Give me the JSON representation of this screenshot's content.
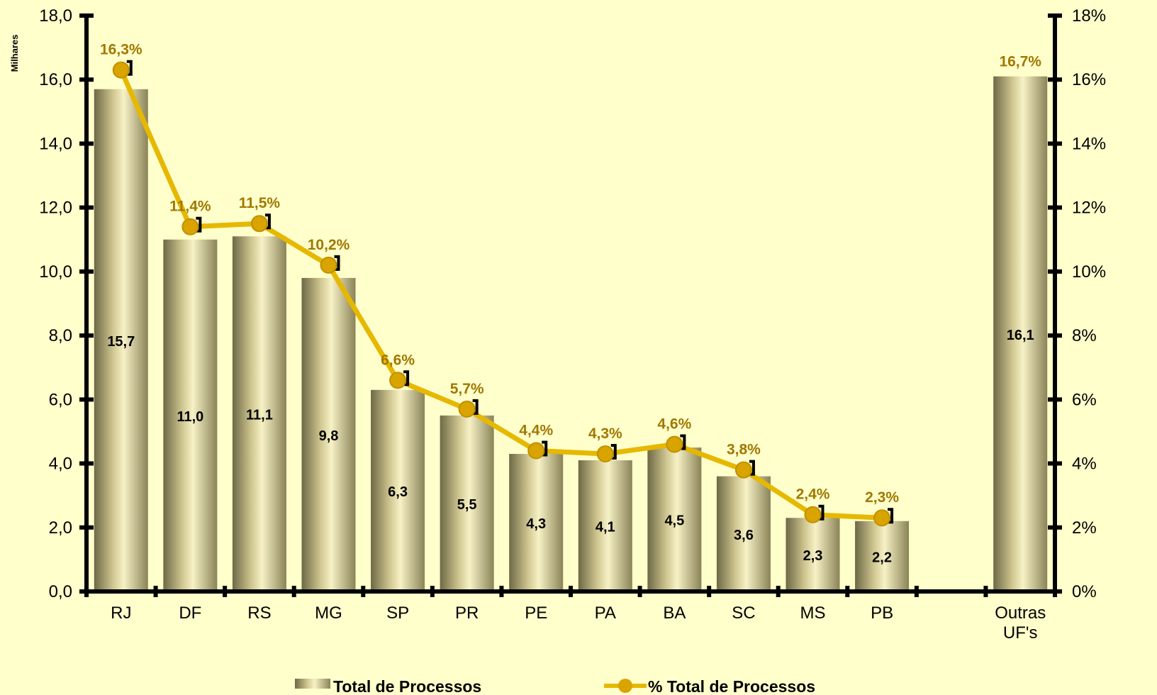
{
  "chart_data": {
    "type": "bar",
    "ylabel": "Milhares",
    "ylim": [
      0,
      18
    ],
    "y2lim": [
      0,
      18
    ],
    "y_ticks": [
      "0,0",
      "2,0",
      "4,0",
      "6,0",
      "8,0",
      "10,0",
      "12,0",
      "14,0",
      "16,0",
      "18,0"
    ],
    "y2_ticks": [
      "0%",
      "2%",
      "4%",
      "6%",
      "8%",
      "10%",
      "12%",
      "14%",
      "16%",
      "18%"
    ],
    "categories": [
      "RJ",
      "DF",
      "RS",
      "MG",
      "SP",
      "PR",
      "PE",
      "PA",
      "BA",
      "SC",
      "MS",
      "PB",
      "",
      "Outras UF's"
    ],
    "series": [
      {
        "name": "Total de Processos",
        "kind": "bar",
        "values": [
          15.7,
          11.0,
          11.1,
          9.8,
          6.3,
          5.5,
          4.3,
          4.1,
          4.5,
          3.6,
          2.3,
          2.2,
          null,
          16.1
        ],
        "labels": [
          "15,7",
          "11,0",
          "11,1",
          "9,8",
          "6,3",
          "5,5",
          "4,3",
          "4,1",
          "4,5",
          "3,6",
          "2,3",
          "2,2",
          "",
          "16,1"
        ]
      },
      {
        "name": "% Total de Processos",
        "kind": "line",
        "values": [
          16.3,
          11.4,
          11.5,
          10.2,
          6.6,
          5.7,
          4.4,
          4.3,
          4.6,
          3.8,
          2.4,
          2.3,
          null,
          16.7
        ],
        "labels": [
          "16,3%",
          "11,4%",
          "11,5%",
          "10,2%",
          "6,6%",
          "5,7%",
          "4,4%",
          "4,3%",
          "4,6%",
          "3,8%",
          "2,4%",
          "2,3%",
          "",
          "16,7%"
        ]
      }
    ],
    "legend": "bottom",
    "grid": false
  },
  "colors": {
    "background": "#FFFFCC",
    "line": "#E6B800",
    "marker": "#D9A400",
    "pct_label": "#A07800",
    "bar_dark": "#7A7350",
    "bar_light": "#F5EFC2"
  },
  "legend": {
    "bar_label": "Total de Processos",
    "line_label": "% Total de Processos"
  }
}
